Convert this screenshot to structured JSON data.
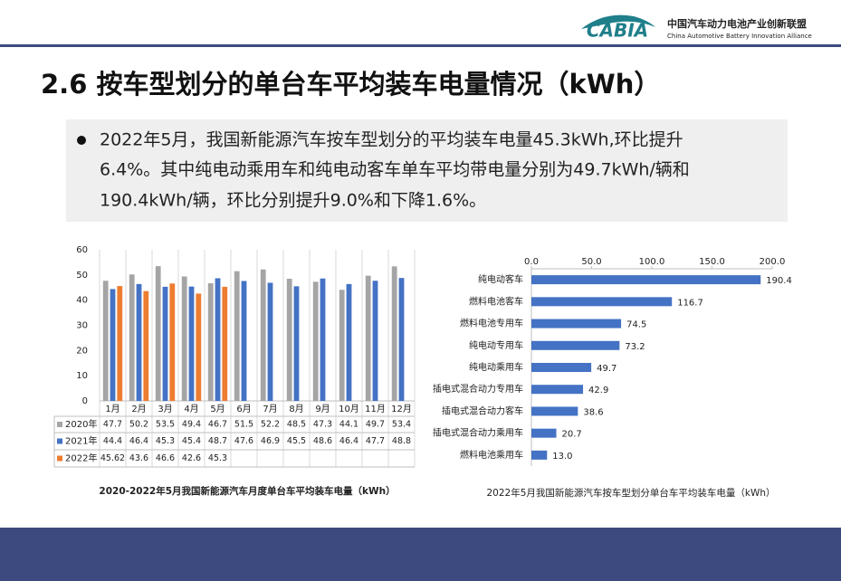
{
  "header": {
    "logo": "CABIA",
    "org_cn": "中国汽车动力电池产业创新联盟",
    "org_en": "China Automotive Battery Innovation Alliance"
  },
  "title": "2.6 按车型划分的单台车平均装车电量情况（kWh）",
  "bullet": {
    "lines": [
      "2022年5月，我国新能源汽车按车型划分的平均装车电量45.3kWh,环比提升",
      "6.4%。其中纯电动乘用车和纯电动客车单车平均带电量分别为49.7kWh/辆和",
      "190.4kWh/辆，环比分别提升9.0%和下降1.6%。"
    ]
  },
  "chart_data": [
    {
      "type": "bar",
      "title": "2020-2022年5月我国新能源汽车月度单台车平均装车电量（kWh）",
      "categories": [
        "1月",
        "2月",
        "3月",
        "4月",
        "5月",
        "6月",
        "7月",
        "8月",
        "9月",
        "10月",
        "11月",
        "12月"
      ],
      "series": [
        {
          "name": "2020年",
          "color": "#a5a5a5",
          "values": [
            47.7,
            50.2,
            53.5,
            49.4,
            46.7,
            51.5,
            52.2,
            48.5,
            47.3,
            44.1,
            49.7,
            53.4
          ]
        },
        {
          "name": "2021年",
          "color": "#4472c4",
          "values": [
            44.4,
            46.4,
            45.3,
            45.4,
            48.7,
            47.6,
            46.9,
            45.5,
            48.6,
            46.4,
            47.7,
            48.8
          ]
        },
        {
          "name": "2022年",
          "color": "#ed7d31",
          "values": [
            45.62,
            43.6,
            46.6,
            42.6,
            45.3,
            null,
            null,
            null,
            null,
            null,
            null,
            null
          ]
        }
      ],
      "ylim": [
        0,
        60
      ],
      "yticks": [
        0,
        10,
        20,
        30,
        40,
        50,
        60
      ],
      "grid": false
    },
    {
      "type": "hbar",
      "title": "2022年5月我国新能源汽车按车型划分单台车平均装车电量（kWh）",
      "categories": [
        "纯电动客车",
        "燃料电池客车",
        "燃料电池专用车",
        "纯电动专用车",
        "纯电动乘用车",
        "插电式混合动力专用车",
        "插电式混合动力客车",
        "插电式混合动力乘用车",
        "燃料电池乘用车"
      ],
      "values": [
        190.4,
        116.7,
        74.5,
        73.2,
        49.7,
        42.9,
        38.6,
        20.7,
        13.0
      ],
      "value_labels": [
        "190.4",
        "116.7",
        "74.5",
        "73.2",
        "49.7",
        "42.9",
        "38.6",
        "20.7",
        "13.0"
      ],
      "color": "#4472c4",
      "xlim": [
        0,
        200
      ],
      "xticks": [
        {
          "value": 0,
          "label": "0.0"
        },
        {
          "value": 50,
          "label": "50.0"
        },
        {
          "value": 100,
          "label": "100.0"
        },
        {
          "value": 150,
          "label": "150.0"
        },
        {
          "value": 200,
          "label": "200.0"
        }
      ]
    }
  ]
}
